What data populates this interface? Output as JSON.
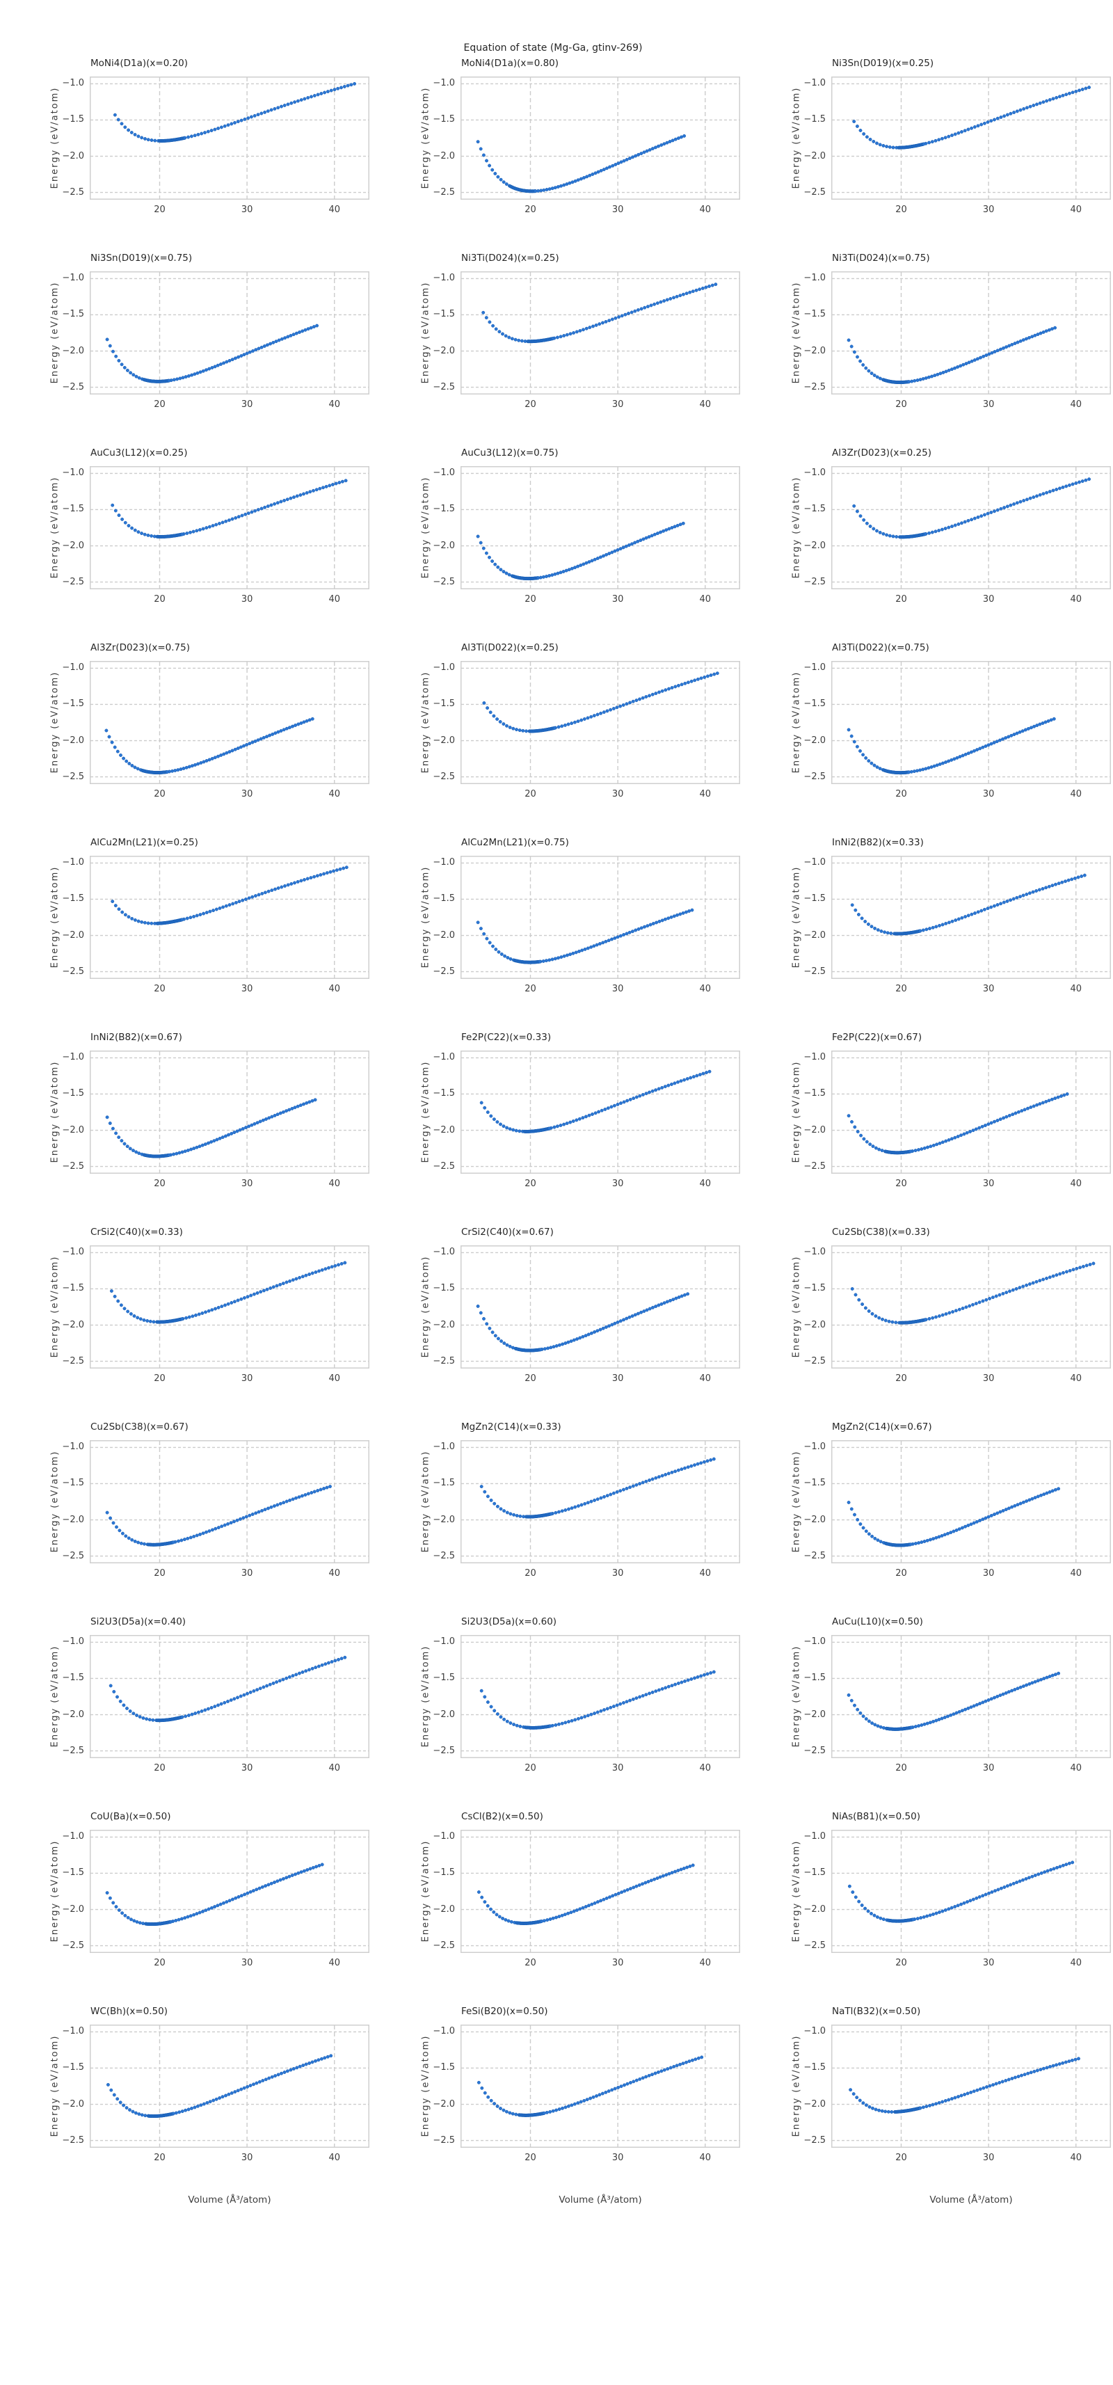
{
  "chart_data": {
    "type": "scatter",
    "suptitle": "Equation of state (Mg-Ga, gtinv-269)",
    "axes": {
      "xlabel": "Volume (Å³/atom)",
      "ylabel": "Energy (eV/atom)",
      "xticks": [
        20,
        30,
        40
      ],
      "yticks": [
        -1.0,
        -1.5,
        -2.0,
        -2.5
      ],
      "xlim": [
        12,
        44
      ],
      "ylim": [
        -2.6,
        -0.9
      ],
      "grid": "dashed",
      "legend": "none"
    },
    "style": {
      "marker_color": "#2b76d3",
      "marker_edge_color": "#1a5fb4",
      "grid_color": "#cccccc",
      "spine_color": "#cfcfcf",
      "tick_text_color": "#3d3d3d",
      "title_text_color": "#262626"
    },
    "subplots": [
      {
        "title": "MoNi4(D1a)(x=0.20)",
        "v": [
          14.9,
          21.3,
          42.3
        ],
        "e": [
          -1.43,
          -1.78,
          -1.0
        ]
      },
      {
        "title": "MoNi4(D1a)(x=0.80)",
        "v": [
          14.0,
          19.0,
          37.6
        ],
        "e": [
          -1.8,
          -2.47,
          -1.72
        ]
      },
      {
        "title": "Ni3Sn(D019)(x=0.25)",
        "v": [
          14.6,
          21.0,
          41.5
        ],
        "e": [
          -1.52,
          -1.87,
          -1.05
        ]
      },
      {
        "title": "Ni3Sn(D019)(x=0.75)",
        "v": [
          14.0,
          19.5,
          38.0
        ],
        "e": [
          -1.84,
          -2.42,
          -1.65
        ]
      },
      {
        "title": "Ni3Ti(D024)(x=0.25)",
        "v": [
          14.6,
          21.0,
          41.2
        ],
        "e": [
          -1.47,
          -1.86,
          -1.08
        ]
      },
      {
        "title": "Ni3Ti(D024)(x=0.75)",
        "v": [
          14.0,
          19.3,
          37.6
        ],
        "e": [
          -1.85,
          -2.43,
          -1.68
        ]
      },
      {
        "title": "AuCu3(L12)(x=0.25)",
        "v": [
          14.6,
          21.0,
          41.3
        ],
        "e": [
          -1.44,
          -1.87,
          -1.1
        ]
      },
      {
        "title": "AuCu3(L12)(x=0.75)",
        "v": [
          14.0,
          19.3,
          37.5
        ],
        "e": [
          -1.87,
          -2.45,
          -1.69
        ]
      },
      {
        "title": "Al3Zr(D023)(x=0.25)",
        "v": [
          14.6,
          21.2,
          41.5
        ],
        "e": [
          -1.45,
          -1.87,
          -1.08
        ]
      },
      {
        "title": "Al3Zr(D023)(x=0.75)",
        "v": [
          13.9,
          19.3,
          37.5
        ],
        "e": [
          -1.86,
          -2.44,
          -1.7
        ]
      },
      {
        "title": "Al3Ti(D022)(x=0.25)",
        "v": [
          14.7,
          21.2,
          41.4
        ],
        "e": [
          -1.48,
          -1.86,
          -1.07
        ]
      },
      {
        "title": "Al3Ti(D022)(x=0.75)",
        "v": [
          14.0,
          19.3,
          37.5
        ],
        "e": [
          -1.85,
          -2.44,
          -1.7
        ]
      },
      {
        "title": "AlCu2Mn(L21)(x=0.25)",
        "v": [
          14.6,
          21.0,
          41.4
        ],
        "e": [
          -1.53,
          -1.82,
          -1.06
        ]
      },
      {
        "title": "AlCu2Mn(L21)(x=0.75)",
        "v": [
          14.0,
          19.5,
          38.5
        ],
        "e": [
          -1.82,
          -2.37,
          -1.65
        ]
      },
      {
        "title": "InNi2(B82)(x=0.33)",
        "v": [
          14.4,
          20.6,
          41.0
        ],
        "e": [
          -1.58,
          -1.97,
          -1.17
        ]
      },
      {
        "title": "InNi2(B82)(x=0.67)",
        "v": [
          14.0,
          19.5,
          37.8
        ],
        "e": [
          -1.82,
          -2.36,
          -1.58
        ]
      },
      {
        "title": "Fe2P(C22)(x=0.33)",
        "v": [
          14.4,
          20.6,
          40.5
        ],
        "e": [
          -1.62,
          -2.01,
          -1.19
        ]
      },
      {
        "title": "Fe2P(C22)(x=0.67)",
        "v": [
          14.0,
          19.5,
          39.0
        ],
        "e": [
          -1.8,
          -2.31,
          -1.5
        ]
      },
      {
        "title": "CrSi2(C40)(x=0.33)",
        "v": [
          14.5,
          21.0,
          41.2
        ],
        "e": [
          -1.53,
          -1.95,
          -1.14
        ]
      },
      {
        "title": "CrSi2(C40)(x=0.67)",
        "v": [
          14.0,
          19.6,
          38.0
        ],
        "e": [
          -1.74,
          -2.35,
          -1.57
        ]
      },
      {
        "title": "Cu2Sb(C38)(x=0.33)",
        "v": [
          14.4,
          21.2,
          42.0
        ],
        "e": [
          -1.5,
          -1.96,
          -1.15
        ]
      },
      {
        "title": "Cu2Sb(C38)(x=0.67)",
        "v": [
          14.0,
          20.0,
          39.5
        ],
        "e": [
          -1.9,
          -2.34,
          -1.54
        ]
      },
      {
        "title": "MgZn2(C14)(x=0.33)",
        "v": [
          14.4,
          20.8,
          41.0
        ],
        "e": [
          -1.54,
          -1.95,
          -1.16
        ]
      },
      {
        "title": "MgZn2(C14)(x=0.67)",
        "v": [
          14.0,
          19.5,
          38.0
        ],
        "e": [
          -1.76,
          -2.35,
          -1.57
        ]
      },
      {
        "title": "Si2U3(D5a)(x=0.40)",
        "v": [
          14.4,
          21.0,
          41.2
        ],
        "e": [
          -1.6,
          -2.07,
          -1.21
        ]
      },
      {
        "title": "Si2U3(D5a)(x=0.60)",
        "v": [
          14.4,
          20.7,
          41.0
        ],
        "e": [
          -1.67,
          -2.18,
          -1.41
        ]
      },
      {
        "title": "AuCu(L10)(x=0.50)",
        "v": [
          14.0,
          19.6,
          38.0
        ],
        "e": [
          -1.73,
          -2.2,
          -1.43
        ]
      },
      {
        "title": "CoU(Ba)(x=0.50)",
        "v": [
          14.0,
          19.7,
          38.6
        ],
        "e": [
          -1.77,
          -2.2,
          -1.38
        ]
      },
      {
        "title": "CsCl(B2)(x=0.50)",
        "v": [
          14.1,
          19.7,
          38.6
        ],
        "e": [
          -1.76,
          -2.19,
          -1.39
        ]
      },
      {
        "title": "NiAs(B81)(x=0.50)",
        "v": [
          14.1,
          19.8,
          39.6
        ],
        "e": [
          -1.68,
          -2.16,
          -1.35
        ]
      },
      {
        "title": "WC(Bh)(x=0.50)",
        "v": [
          14.1,
          20.0,
          39.6
        ],
        "e": [
          -1.73,
          -2.16,
          -1.33
        ]
      },
      {
        "title": "FeSi(B20)(x=0.50)",
        "v": [
          14.1,
          20.0,
          39.6
        ],
        "e": [
          -1.7,
          -2.15,
          -1.35
        ]
      },
      {
        "title": "NaTl(B32)(x=0.50)",
        "v": [
          14.2,
          20.6,
          40.3
        ],
        "e": [
          -1.8,
          -2.09,
          -1.37
        ]
      }
    ]
  }
}
